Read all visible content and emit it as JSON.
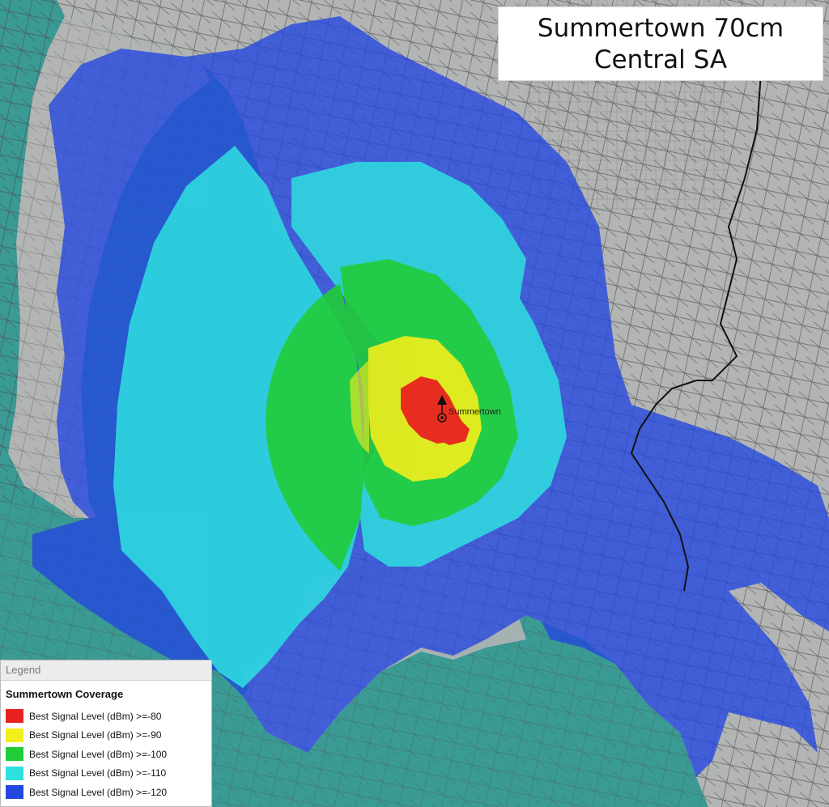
{
  "title": {
    "line1": "Summertown 70cm",
    "line2": "Central SA"
  },
  "site": {
    "label": "Summertown"
  },
  "legend": {
    "header": "Legend",
    "group": "Summertown Coverage",
    "items": [
      {
        "label": "Best Signal Level (dBm) >=-80",
        "color": "#e8231f"
      },
      {
        "label": "Best Signal Level (dBm) >=-90",
        "color": "#f2ee1c"
      },
      {
        "label": "Best Signal Level (dBm) >=-100",
        "color": "#21cc38"
      },
      {
        "label": "Best Signal Level (dBm) >=-110",
        "color": "#2ee0e0"
      },
      {
        "label": "Best Signal Level (dBm) >=-120",
        "color": "#2346e0"
      }
    ]
  },
  "colors": {
    "sea": "#3a9a94",
    "land": "#aeb0b0",
    "road": "#555555",
    "river": "#111111"
  }
}
